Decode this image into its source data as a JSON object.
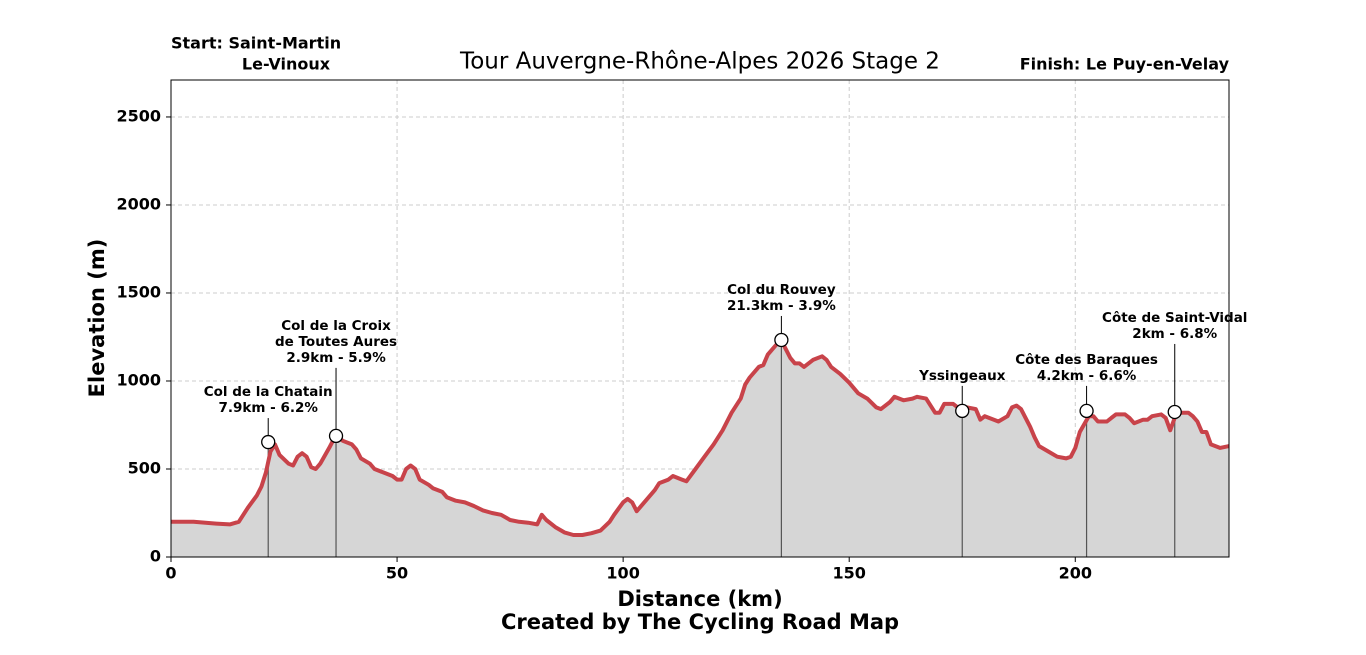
{
  "chart_data": {
    "type": "area",
    "title": "Tour Auvergne-Rhône-Alpes 2026 Stage 2",
    "start_label": [
      "Start: Saint-Martin",
      "Le-Vinoux"
    ],
    "finish_label": "Finish: Le Puy-en-Velay",
    "x_label": "Distance (km)",
    "y_label": "Elevation (m)",
    "credit": "Created by The Cycling Road Map",
    "line_color": "#c8434a",
    "fill_color": "#d6d6d6",
    "grid": true,
    "xlim": [
      0,
      234
    ],
    "ylim": [
      0,
      2710
    ],
    "xticks": [
      0,
      50,
      100,
      150,
      200
    ],
    "yticks": [
      0,
      500,
      1000,
      1500,
      2000,
      2500
    ],
    "x": [
      0,
      5,
      10,
      13,
      15,
      17,
      19,
      20,
      21,
      22,
      23,
      24,
      26,
      27,
      28,
      29,
      30,
      31,
      32,
      33,
      35,
      36,
      37,
      38,
      40,
      41,
      42,
      44,
      45,
      47,
      49,
      50,
      51,
      52,
      53,
      54,
      55,
      57,
      58,
      60,
      61,
      63,
      65,
      67,
      69,
      71,
      73,
      75,
      77,
      79,
      81,
      82,
      83,
      85,
      87,
      89,
      91,
      93,
      95,
      97,
      98,
      100,
      101,
      102,
      103,
      105,
      107,
      108,
      110,
      111,
      113,
      114,
      116,
      118,
      120,
      122,
      124,
      126,
      127,
      128,
      130,
      131,
      132,
      134,
      135,
      136,
      137,
      138,
      139,
      140,
      141,
      142,
      144,
      145,
      146,
      148,
      150,
      152,
      154,
      156,
      157,
      159,
      160,
      162,
      164,
      165,
      167,
      169,
      170,
      171,
      173,
      175,
      176,
      178,
      179,
      180,
      182,
      183,
      185,
      186,
      187,
      188,
      190,
      191,
      192,
      194,
      196,
      198,
      199,
      200,
      201,
      203,
      204,
      205,
      207,
      208,
      209,
      211,
      212,
      213,
      214,
      215,
      216,
      217,
      219,
      220,
      221,
      222,
      223,
      225,
      226,
      227,
      228,
      229,
      230,
      232,
      234
    ],
    "values": [
      200,
      200,
      190,
      185,
      200,
      280,
      350,
      400,
      480,
      600,
      640,
      580,
      530,
      520,
      570,
      590,
      570,
      510,
      500,
      530,
      620,
      670,
      680,
      660,
      640,
      610,
      560,
      530,
      500,
      480,
      460,
      440,
      440,
      500,
      520,
      500,
      440,
      410,
      390,
      370,
      340,
      320,
      310,
      290,
      265,
      250,
      240,
      210,
      200,
      195,
      185,
      240,
      210,
      170,
      140,
      125,
      125,
      135,
      150,
      200,
      240,
      310,
      330,
      310,
      260,
      320,
      380,
      420,
      440,
      460,
      440,
      430,
      500,
      570,
      640,
      720,
      820,
      900,
      980,
      1020,
      1080,
      1090,
      1150,
      1210,
      1230,
      1180,
      1130,
      1100,
      1100,
      1080,
      1100,
      1120,
      1140,
      1120,
      1080,
      1040,
      990,
      930,
      900,
      850,
      840,
      880,
      910,
      890,
      900,
      910,
      900,
      820,
      820,
      870,
      870,
      830,
      850,
      840,
      780,
      800,
      780,
      770,
      800,
      850,
      860,
      840,
      740,
      680,
      630,
      600,
      570,
      560,
      570,
      620,
      710,
      800,
      800,
      770,
      770,
      790,
      810,
      810,
      790,
      760,
      770,
      780,
      780,
      800,
      810,
      790,
      720,
      790,
      820,
      820,
      800,
      770,
      710,
      710,
      640,
      620,
      630
    ],
    "annotations": [
      {
        "x": 21.5,
        "y": 653,
        "label": [
          "Col de la Chatain",
          "7.9km - 6.2%"
        ]
      },
      {
        "x": 36.5,
        "y": 688,
        "label": [
          "Col de la Croix",
          "de Toutes Aures",
          "2.9km - 5.9%"
        ]
      },
      {
        "x": 135,
        "y": 1233,
        "label": [
          "Col du Rouvey",
          "21.3km - 3.9%"
        ]
      },
      {
        "x": 175,
        "y": 830,
        "label": [
          "Yssingeaux"
        ]
      },
      {
        "x": 202.5,
        "y": 830,
        "label": [
          "Côte des Baraques",
          "4.2km - 6.6%"
        ]
      },
      {
        "x": 222,
        "y": 824,
        "label": [
          "Côte de Saint-Vidal",
          "2km - 6.8%"
        ]
      }
    ]
  }
}
